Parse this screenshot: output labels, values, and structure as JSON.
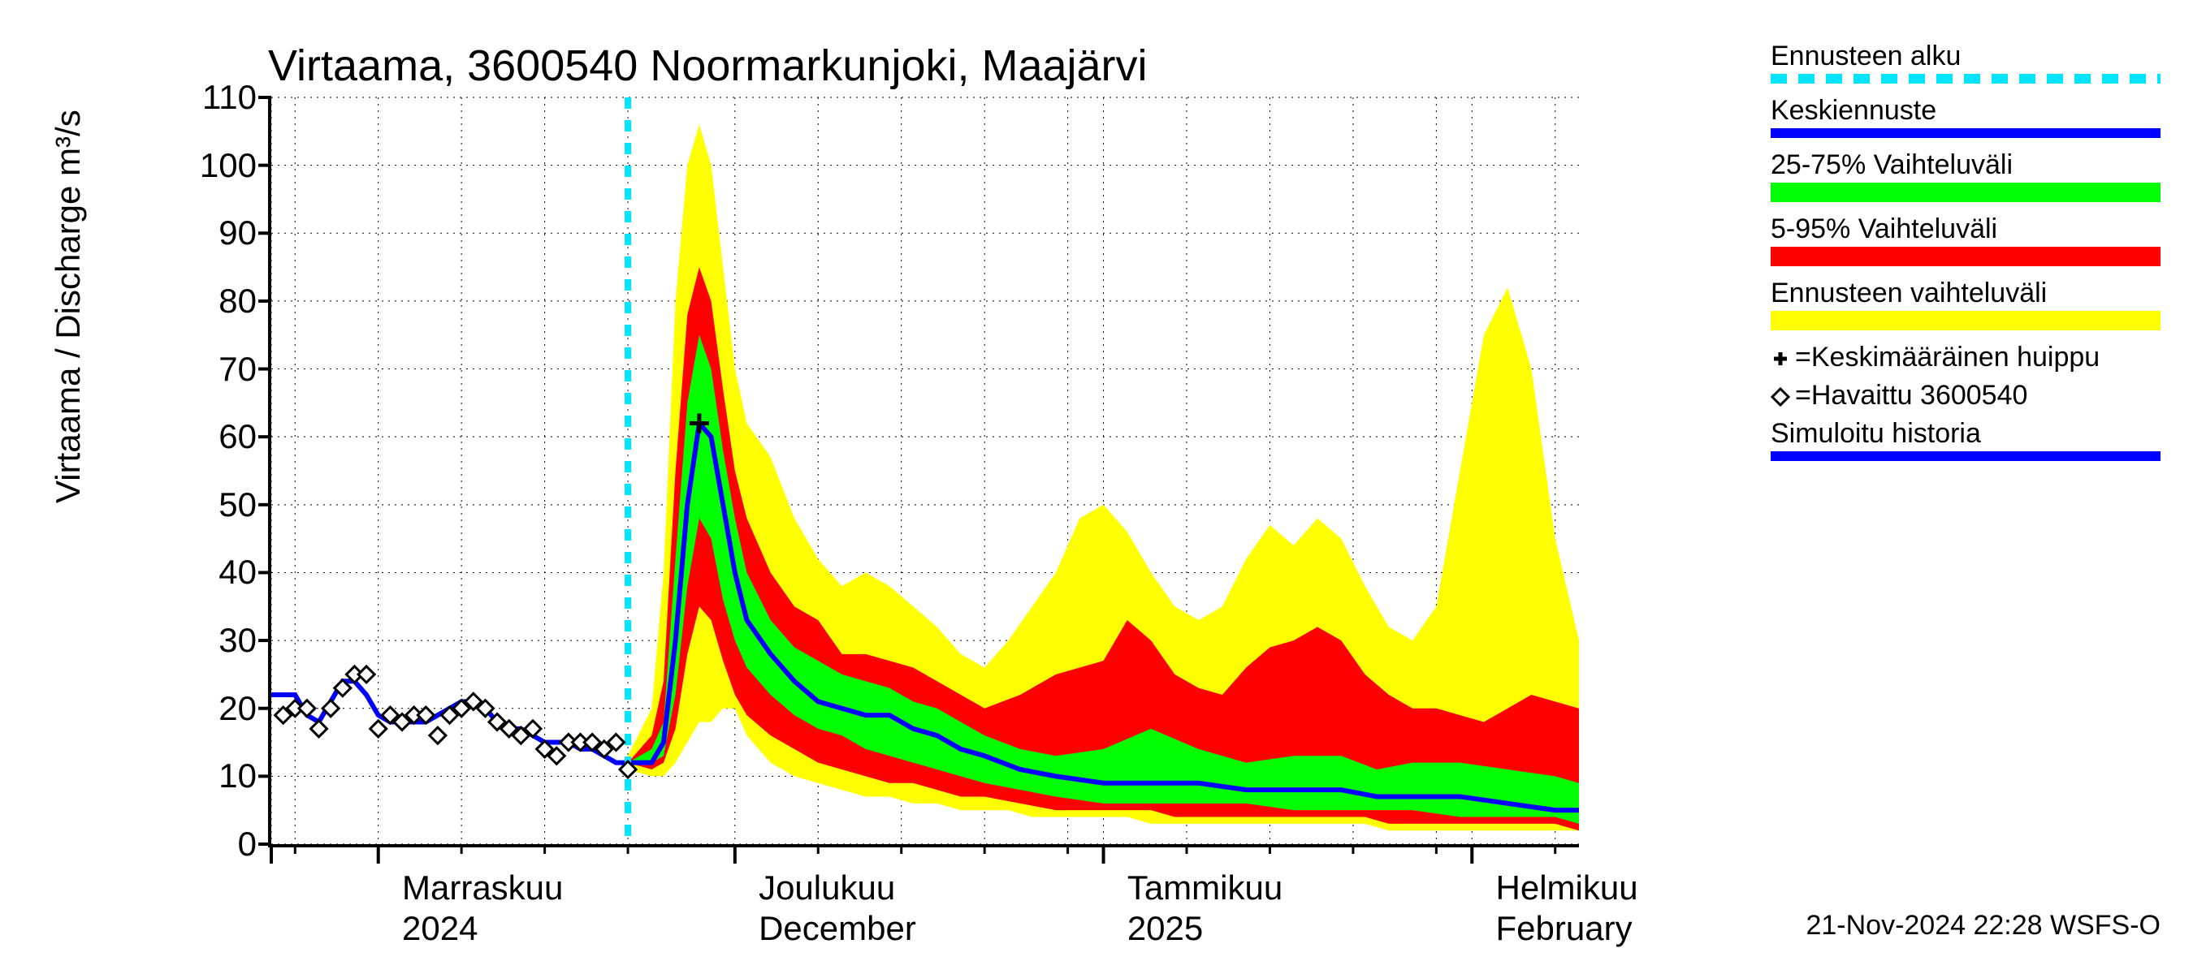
{
  "title": "Virtaama, 3600540 Noormarkunjoki, Maajärvi",
  "ylabel": "Virtaama / Discharge   m³/s",
  "footer": "21-Nov-2024 22:28 WSFS-O",
  "chart": {
    "type": "line-with-bands",
    "background_color": "#ffffff",
    "grid_color": "#000000",
    "grid_dash": "2,6",
    "ylim": [
      0,
      110
    ],
    "ytick_step": 10,
    "yticks": [
      0,
      10,
      20,
      30,
      40,
      50,
      60,
      70,
      80,
      90,
      100,
      110
    ],
    "x_days_total": 110,
    "x_start_day": 0,
    "forecast_start_day": 30,
    "month_boundaries_days": [
      0,
      9,
      39,
      70,
      101
    ],
    "week_minor_ticks_days": [
      2,
      16,
      23,
      30,
      46,
      53,
      60,
      67,
      77,
      84,
      91,
      98,
      108
    ],
    "x_month_labels": [
      {
        "day": 11,
        "line1": "Marraskuu",
        "line2": "2024"
      },
      {
        "day": 41,
        "line1": "Joulukuu",
        "line2": "December"
      },
      {
        "day": 72,
        "line1": "Tammikuu",
        "line2": "2025"
      },
      {
        "day": 103,
        "line1": "Helmikuu",
        "line2": "February"
      }
    ],
    "colors": {
      "forecast_start_line": "#00e5ff",
      "median": "#0000ff",
      "band_25_75": "#00ff00",
      "band_5_95": "#ff0000",
      "band_full": "#ffff00",
      "sim_history": "#0000ff",
      "observed_marker_edge": "#000000",
      "observed_marker_fill": "#ffffff",
      "peak_marker": "#000000"
    },
    "line_widths": {
      "median": 6,
      "sim_history": 6,
      "forecast_start": 8
    },
    "font_sizes": {
      "title": 54,
      "axis_label": 42,
      "tick": 42,
      "legend": 34,
      "footer": 34
    },
    "observed": [
      {
        "d": 1,
        "v": 19
      },
      {
        "d": 2,
        "v": 20
      },
      {
        "d": 3,
        "v": 20
      },
      {
        "d": 4,
        "v": 17
      },
      {
        "d": 5,
        "v": 20
      },
      {
        "d": 6,
        "v": 23
      },
      {
        "d": 7,
        "v": 25
      },
      {
        "d": 8,
        "v": 25
      },
      {
        "d": 9,
        "v": 17
      },
      {
        "d": 10,
        "v": 19
      },
      {
        "d": 11,
        "v": 18
      },
      {
        "d": 12,
        "v": 19
      },
      {
        "d": 13,
        "v": 19
      },
      {
        "d": 14,
        "v": 16
      },
      {
        "d": 15,
        "v": 19
      },
      {
        "d": 16,
        "v": 20
      },
      {
        "d": 17,
        "v": 21
      },
      {
        "d": 18,
        "v": 20
      },
      {
        "d": 19,
        "v": 18
      },
      {
        "d": 20,
        "v": 17
      },
      {
        "d": 21,
        "v": 16
      },
      {
        "d": 22,
        "v": 17
      },
      {
        "d": 23,
        "v": 14
      },
      {
        "d": 24,
        "v": 13
      },
      {
        "d": 25,
        "v": 15
      },
      {
        "d": 26,
        "v": 15
      },
      {
        "d": 27,
        "v": 15
      },
      {
        "d": 28,
        "v": 14
      },
      {
        "d": 29,
        "v": 15
      },
      {
        "d": 30,
        "v": 11
      }
    ],
    "sim_history": [
      {
        "d": 0,
        "v": 22
      },
      {
        "d": 1,
        "v": 22
      },
      {
        "d": 2,
        "v": 22
      },
      {
        "d": 3,
        "v": 19
      },
      {
        "d": 4,
        "v": 18
      },
      {
        "d": 5,
        "v": 21
      },
      {
        "d": 6,
        "v": 24
      },
      {
        "d": 7,
        "v": 24
      },
      {
        "d": 8,
        "v": 22
      },
      {
        "d": 9,
        "v": 19
      },
      {
        "d": 10,
        "v": 18
      },
      {
        "d": 11,
        "v": 18
      },
      {
        "d": 12,
        "v": 18
      },
      {
        "d": 13,
        "v": 18
      },
      {
        "d": 14,
        "v": 19
      },
      {
        "d": 15,
        "v": 20
      },
      {
        "d": 16,
        "v": 21
      },
      {
        "d": 17,
        "v": 21
      },
      {
        "d": 18,
        "v": 20
      },
      {
        "d": 19,
        "v": 18
      },
      {
        "d": 20,
        "v": 17
      },
      {
        "d": 21,
        "v": 17
      },
      {
        "d": 22,
        "v": 16
      },
      {
        "d": 23,
        "v": 15
      },
      {
        "d": 24,
        "v": 15
      },
      {
        "d": 25,
        "v": 15
      },
      {
        "d": 26,
        "v": 14
      },
      {
        "d": 27,
        "v": 14
      },
      {
        "d": 28,
        "v": 13
      },
      {
        "d": 29,
        "v": 12
      },
      {
        "d": 30,
        "v": 12
      }
    ],
    "median": [
      {
        "d": 30,
        "v": 12
      },
      {
        "d": 32,
        "v": 12
      },
      {
        "d": 33,
        "v": 15
      },
      {
        "d": 34,
        "v": 30
      },
      {
        "d": 35,
        "v": 50
      },
      {
        "d": 36,
        "v": 62
      },
      {
        "d": 37,
        "v": 60
      },
      {
        "d": 38,
        "v": 50
      },
      {
        "d": 39,
        "v": 40
      },
      {
        "d": 40,
        "v": 33
      },
      {
        "d": 42,
        "v": 28
      },
      {
        "d": 44,
        "v": 24
      },
      {
        "d": 46,
        "v": 21
      },
      {
        "d": 48,
        "v": 20
      },
      {
        "d": 50,
        "v": 19
      },
      {
        "d": 52,
        "v": 19
      },
      {
        "d": 54,
        "v": 17
      },
      {
        "d": 56,
        "v": 16
      },
      {
        "d": 58,
        "v": 14
      },
      {
        "d": 60,
        "v": 13
      },
      {
        "d": 63,
        "v": 11
      },
      {
        "d": 66,
        "v": 10
      },
      {
        "d": 70,
        "v": 9
      },
      {
        "d": 74,
        "v": 9
      },
      {
        "d": 78,
        "v": 9
      },
      {
        "d": 82,
        "v": 8
      },
      {
        "d": 86,
        "v": 8
      },
      {
        "d": 90,
        "v": 8
      },
      {
        "d": 93,
        "v": 7
      },
      {
        "d": 96,
        "v": 7
      },
      {
        "d": 100,
        "v": 7
      },
      {
        "d": 104,
        "v": 6
      },
      {
        "d": 108,
        "v": 5
      },
      {
        "d": 110,
        "v": 5
      }
    ],
    "band_25_75": [
      {
        "d": 30,
        "lo": 12,
        "hi": 12
      },
      {
        "d": 32,
        "lo": 12,
        "hi": 14
      },
      {
        "d": 33,
        "lo": 13,
        "hi": 18
      },
      {
        "d": 34,
        "lo": 22,
        "hi": 42
      },
      {
        "d": 35,
        "lo": 38,
        "hi": 65
      },
      {
        "d": 36,
        "lo": 48,
        "hi": 75
      },
      {
        "d": 37,
        "lo": 45,
        "hi": 70
      },
      {
        "d": 38,
        "lo": 36,
        "hi": 58
      },
      {
        "d": 39,
        "lo": 30,
        "hi": 48
      },
      {
        "d": 40,
        "lo": 26,
        "hi": 40
      },
      {
        "d": 42,
        "lo": 22,
        "hi": 33
      },
      {
        "d": 44,
        "lo": 19,
        "hi": 29
      },
      {
        "d": 46,
        "lo": 17,
        "hi": 27
      },
      {
        "d": 48,
        "lo": 16,
        "hi": 25
      },
      {
        "d": 50,
        "lo": 14,
        "hi": 24
      },
      {
        "d": 52,
        "lo": 13,
        "hi": 23
      },
      {
        "d": 54,
        "lo": 12,
        "hi": 21
      },
      {
        "d": 56,
        "lo": 11,
        "hi": 20
      },
      {
        "d": 58,
        "lo": 10,
        "hi": 18
      },
      {
        "d": 60,
        "lo": 9,
        "hi": 16
      },
      {
        "d": 63,
        "lo": 8,
        "hi": 14
      },
      {
        "d": 66,
        "lo": 7,
        "hi": 13
      },
      {
        "d": 70,
        "lo": 6,
        "hi": 14
      },
      {
        "d": 74,
        "lo": 6,
        "hi": 17
      },
      {
        "d": 78,
        "lo": 6,
        "hi": 14
      },
      {
        "d": 82,
        "lo": 6,
        "hi": 12
      },
      {
        "d": 86,
        "lo": 5,
        "hi": 13
      },
      {
        "d": 90,
        "lo": 5,
        "hi": 13
      },
      {
        "d": 93,
        "lo": 5,
        "hi": 11
      },
      {
        "d": 96,
        "lo": 5,
        "hi": 12
      },
      {
        "d": 100,
        "lo": 4,
        "hi": 12
      },
      {
        "d": 104,
        "lo": 4,
        "hi": 11
      },
      {
        "d": 108,
        "lo": 4,
        "hi": 10
      },
      {
        "d": 110,
        "lo": 3,
        "hi": 9
      }
    ],
    "band_5_95": [
      {
        "d": 30,
        "lo": 12,
        "hi": 12
      },
      {
        "d": 32,
        "lo": 11,
        "hi": 16
      },
      {
        "d": 33,
        "lo": 12,
        "hi": 24
      },
      {
        "d": 34,
        "lo": 17,
        "hi": 55
      },
      {
        "d": 35,
        "lo": 28,
        "hi": 78
      },
      {
        "d": 36,
        "lo": 35,
        "hi": 85
      },
      {
        "d": 37,
        "lo": 33,
        "hi": 80
      },
      {
        "d": 38,
        "lo": 27,
        "hi": 67
      },
      {
        "d": 39,
        "lo": 22,
        "hi": 55
      },
      {
        "d": 40,
        "lo": 19,
        "hi": 48
      },
      {
        "d": 42,
        "lo": 16,
        "hi": 40
      },
      {
        "d": 44,
        "lo": 14,
        "hi": 35
      },
      {
        "d": 46,
        "lo": 12,
        "hi": 33
      },
      {
        "d": 48,
        "lo": 11,
        "hi": 28
      },
      {
        "d": 50,
        "lo": 10,
        "hi": 28
      },
      {
        "d": 52,
        "lo": 9,
        "hi": 27
      },
      {
        "d": 54,
        "lo": 9,
        "hi": 26
      },
      {
        "d": 56,
        "lo": 8,
        "hi": 24
      },
      {
        "d": 58,
        "lo": 7,
        "hi": 22
      },
      {
        "d": 60,
        "lo": 7,
        "hi": 20
      },
      {
        "d": 63,
        "lo": 6,
        "hi": 22
      },
      {
        "d": 66,
        "lo": 5,
        "hi": 25
      },
      {
        "d": 70,
        "lo": 5,
        "hi": 27
      },
      {
        "d": 72,
        "lo": 5,
        "hi": 33
      },
      {
        "d": 74,
        "lo": 5,
        "hi": 30
      },
      {
        "d": 76,
        "lo": 4,
        "hi": 25
      },
      {
        "d": 78,
        "lo": 4,
        "hi": 23
      },
      {
        "d": 80,
        "lo": 4,
        "hi": 22
      },
      {
        "d": 82,
        "lo": 4,
        "hi": 26
      },
      {
        "d": 84,
        "lo": 4,
        "hi": 29
      },
      {
        "d": 86,
        "lo": 4,
        "hi": 30
      },
      {
        "d": 88,
        "lo": 4,
        "hi": 32
      },
      {
        "d": 90,
        "lo": 4,
        "hi": 30
      },
      {
        "d": 92,
        "lo": 4,
        "hi": 25
      },
      {
        "d": 94,
        "lo": 3,
        "hi": 22
      },
      {
        "d": 96,
        "lo": 3,
        "hi": 20
      },
      {
        "d": 98,
        "lo": 3,
        "hi": 20
      },
      {
        "d": 100,
        "lo": 3,
        "hi": 19
      },
      {
        "d": 102,
        "lo": 3,
        "hi": 18
      },
      {
        "d": 104,
        "lo": 3,
        "hi": 20
      },
      {
        "d": 106,
        "lo": 3,
        "hi": 22
      },
      {
        "d": 108,
        "lo": 3,
        "hi": 21
      },
      {
        "d": 110,
        "lo": 2,
        "hi": 20
      }
    ],
    "band_full": [
      {
        "d": 30,
        "lo": 11,
        "hi": 13
      },
      {
        "d": 32,
        "lo": 10,
        "hi": 20
      },
      {
        "d": 33,
        "lo": 10,
        "hi": 40
      },
      {
        "d": 34,
        "lo": 12,
        "hi": 80
      },
      {
        "d": 35,
        "lo": 15,
        "hi": 100
      },
      {
        "d": 36,
        "lo": 18,
        "hi": 106
      },
      {
        "d": 37,
        "lo": 18,
        "hi": 100
      },
      {
        "d": 38,
        "lo": 20,
        "hi": 85
      },
      {
        "d": 39,
        "lo": 20,
        "hi": 70
      },
      {
        "d": 40,
        "lo": 16,
        "hi": 62
      },
      {
        "d": 42,
        "lo": 12,
        "hi": 57
      },
      {
        "d": 44,
        "lo": 10,
        "hi": 48
      },
      {
        "d": 46,
        "lo": 9,
        "hi": 42
      },
      {
        "d": 48,
        "lo": 8,
        "hi": 38
      },
      {
        "d": 50,
        "lo": 7,
        "hi": 40
      },
      {
        "d": 52,
        "lo": 7,
        "hi": 38
      },
      {
        "d": 54,
        "lo": 6,
        "hi": 35
      },
      {
        "d": 56,
        "lo": 6,
        "hi": 32
      },
      {
        "d": 58,
        "lo": 5,
        "hi": 28
      },
      {
        "d": 60,
        "lo": 5,
        "hi": 26
      },
      {
        "d": 62,
        "lo": 5,
        "hi": 30
      },
      {
        "d": 64,
        "lo": 4,
        "hi": 35
      },
      {
        "d": 66,
        "lo": 4,
        "hi": 40
      },
      {
        "d": 68,
        "lo": 4,
        "hi": 48
      },
      {
        "d": 70,
        "lo": 4,
        "hi": 50
      },
      {
        "d": 72,
        "lo": 4,
        "hi": 46
      },
      {
        "d": 74,
        "lo": 3,
        "hi": 40
      },
      {
        "d": 76,
        "lo": 3,
        "hi": 35
      },
      {
        "d": 78,
        "lo": 3,
        "hi": 33
      },
      {
        "d": 80,
        "lo": 3,
        "hi": 35
      },
      {
        "d": 82,
        "lo": 3,
        "hi": 42
      },
      {
        "d": 84,
        "lo": 3,
        "hi": 47
      },
      {
        "d": 86,
        "lo": 3,
        "hi": 44
      },
      {
        "d": 88,
        "lo": 3,
        "hi": 48
      },
      {
        "d": 90,
        "lo": 3,
        "hi": 45
      },
      {
        "d": 92,
        "lo": 3,
        "hi": 38
      },
      {
        "d": 94,
        "lo": 2,
        "hi": 32
      },
      {
        "d": 96,
        "lo": 2,
        "hi": 30
      },
      {
        "d": 98,
        "lo": 2,
        "hi": 35
      },
      {
        "d": 100,
        "lo": 2,
        "hi": 55
      },
      {
        "d": 102,
        "lo": 2,
        "hi": 75
      },
      {
        "d": 104,
        "lo": 2,
        "hi": 82
      },
      {
        "d": 106,
        "lo": 2,
        "hi": 70
      },
      {
        "d": 108,
        "lo": 2,
        "hi": 45
      },
      {
        "d": 110,
        "lo": 2,
        "hi": 30
      }
    ],
    "peak_marker": {
      "d": 36,
      "v": 62
    }
  },
  "legend": {
    "items": [
      {
        "label": "Ennusteen alku",
        "type": "dash",
        "color": "#00e5ff"
      },
      {
        "label": "Keskiennuste",
        "type": "line",
        "color": "#0000ff"
      },
      {
        "label": "25-75% Vaihteluväli",
        "type": "fill",
        "color": "#00ff00"
      },
      {
        "label": "5-95% Vaihteluväli",
        "type": "fill",
        "color": "#ff0000"
      },
      {
        "label": "Ennusteen vaihteluväli",
        "type": "fill",
        "color": "#ffff00"
      },
      {
        "label": "=Keskimääräinen huippu",
        "type": "plus",
        "color": "#000000"
      },
      {
        "label": "=Havaittu 3600540",
        "type": "diamond",
        "color": "#000000"
      },
      {
        "label": "Simuloitu historia",
        "type": "line",
        "color": "#0000ff"
      }
    ]
  }
}
